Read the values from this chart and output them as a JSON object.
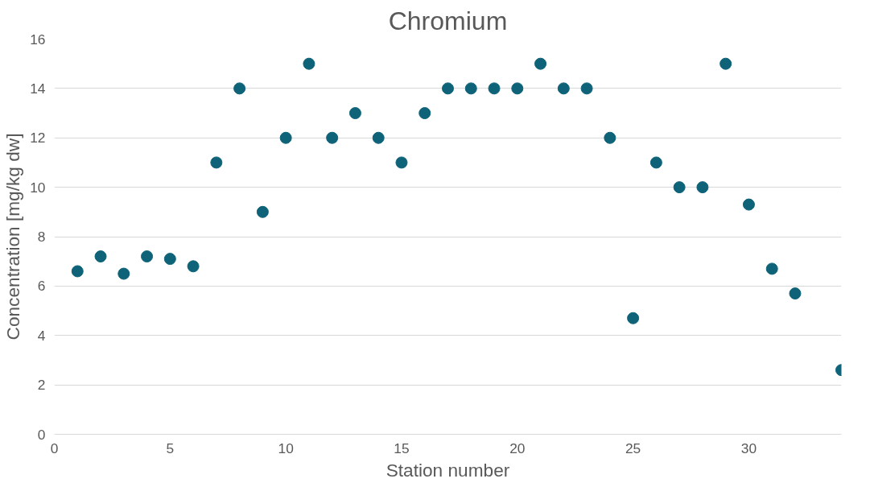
{
  "chart_data": {
    "type": "scatter",
    "title": "Chromium",
    "xlabel": "Station number",
    "ylabel": "Concentration [mg/kg dw]",
    "x": [
      1,
      2,
      3,
      4,
      5,
      6,
      7,
      8,
      9,
      10,
      11,
      12,
      13,
      14,
      15,
      16,
      17,
      18,
      19,
      20,
      21,
      22,
      23,
      24,
      25,
      26,
      27,
      28,
      29,
      30,
      31,
      32,
      34
    ],
    "series": [
      {
        "color": "#0e6379",
        "values": [
          6.6,
          7.2,
          6.5,
          7.2,
          7.1,
          6.8,
          11,
          14,
          9,
          12,
          15,
          12,
          13,
          12,
          11,
          13,
          14,
          14,
          14,
          14,
          15,
          14,
          14,
          12,
          4.7,
          11,
          10,
          10,
          15,
          9.3,
          6.7,
          5.7,
          2.6
        ]
      }
    ],
    "xlim": [
      0,
      34
    ],
    "xticks": [
      0,
      5,
      10,
      15,
      20,
      25,
      30
    ],
    "ylim": [
      0,
      16
    ],
    "yticks": [
      0,
      2,
      4,
      6,
      8,
      10,
      12,
      14,
      16
    ],
    "grid": "y",
    "marker": "circle"
  }
}
